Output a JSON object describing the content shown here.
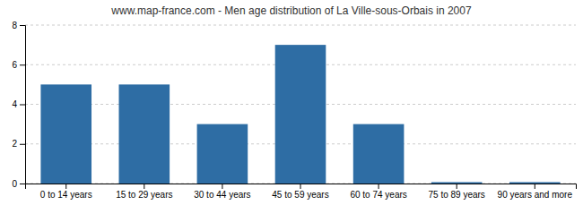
{
  "chart_data": {
    "type": "bar",
    "title": "www.map-france.com - Men age distribution of La Ville-sous-Orbais in 2007",
    "categories": [
      "0 to 14 years",
      "15 to 29 years",
      "30 to 44 years",
      "45 to 59 years",
      "60 to 74 years",
      "75 to 89 years",
      "90 years and more"
    ],
    "values": [
      5,
      5,
      3,
      7,
      3,
      0.07,
      0.07
    ],
    "color": "#2e6da4",
    "ylim": [
      0,
      8
    ],
    "yticks": [
      0,
      2,
      4,
      6,
      8
    ],
    "grid": true
  }
}
